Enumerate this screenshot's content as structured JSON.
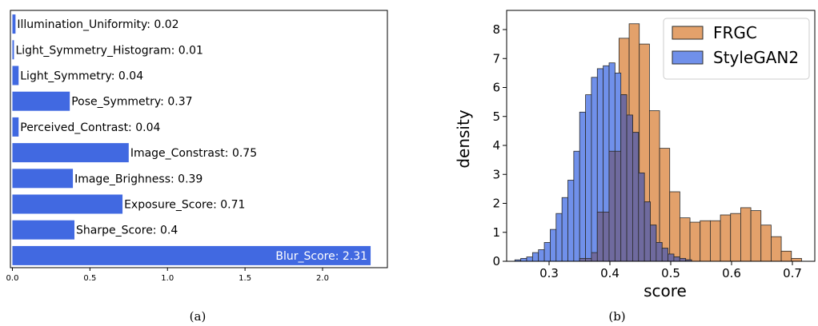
{
  "captions": [
    "(a)",
    "(b)"
  ],
  "colors": {
    "bar": "#4169e1",
    "frgc": "#e3a16b",
    "stylegan2": "#7090ea",
    "overlap": "#6f6a9e",
    "axis": "#000000"
  },
  "chart_data": [
    {
      "type": "bar",
      "orientation": "horizontal",
      "categories": [
        "Illumination_Uniformity",
        "Light_Symmetry_Histogram",
        "Light_Symmetry",
        "Pose_Symmetry",
        "Perceived_Contrast",
        "Image_Constrast",
        "Image_Brighness",
        "Exposure_Score",
        "Sharpe_Score",
        "Blur_Score"
      ],
      "values": [
        0.02,
        0.01,
        0.04,
        0.37,
        0.04,
        0.75,
        0.39,
        0.71,
        0.4,
        2.31
      ],
      "labels": [
        "Illumination_Uniformity: 0.02",
        "Light_Symmetry_Histogram: 0.01",
        "Light_Symmetry: 0.04",
        "Pose_Symmetry: 0.37",
        "Perceived_Contrast: 0.04",
        "Image_Constrast: 0.75",
        "Image_Brighness: 0.39",
        "Exposure_Score: 0.71",
        "Sharpe_Score: 0.4",
        "Blur_Score: 2.31"
      ],
      "xticks": [
        0.0,
        0.5,
        1.0,
        1.5,
        2.0
      ],
      "xtick_labels": [
        "0.0",
        "0.5",
        "1.0",
        "1.5",
        "2.0"
      ],
      "xlim": [
        0,
        2.4
      ],
      "grid": false
    },
    {
      "type": "histogram",
      "xlabel": "score",
      "ylabel": "density",
      "xlim": [
        0.22,
        0.745
      ],
      "ylim": [
        0,
        8.6
      ],
      "xticks": [
        0.3,
        0.4,
        0.5,
        0.6,
        0.7
      ],
      "xtick_labels": [
        "0.3",
        "0.4",
        "0.5",
        "0.6",
        "0.7"
      ],
      "yticks": [
        0,
        1,
        2,
        3,
        4,
        5,
        6,
        7,
        8
      ],
      "ytick_labels": [
        "0",
        "1",
        "2",
        "3",
        "4",
        "5",
        "6",
        "7",
        "8"
      ],
      "legend_position": "top-right",
      "grid": false,
      "series": [
        {
          "name": "FRGC",
          "bin_start": 0.3483,
          "bin_width": 0.01667,
          "values": [
            0.1,
            0.3,
            1.7,
            3.8,
            7.7,
            8.2,
            7.5,
            5.2,
            3.9,
            2.4,
            1.5,
            1.35,
            1.4,
            1.4,
            1.6,
            1.65,
            1.85,
            1.75,
            1.25,
            0.85,
            0.35,
            0.1
          ]
        },
        {
          "name": "StyleGAN2",
          "bin_start": 0.2438,
          "bin_width": 0.00968,
          "values": [
            0.05,
            0.1,
            0.15,
            0.3,
            0.4,
            0.65,
            1.1,
            1.65,
            2.2,
            2.8,
            3.8,
            5.15,
            5.75,
            6.35,
            6.65,
            6.75,
            6.85,
            6.5,
            5.75,
            5.05,
            4.45,
            3.05,
            2.05,
            1.25,
            0.65,
            0.45,
            0.25,
            0.15,
            0.1,
            0.05
          ]
        }
      ]
    }
  ]
}
